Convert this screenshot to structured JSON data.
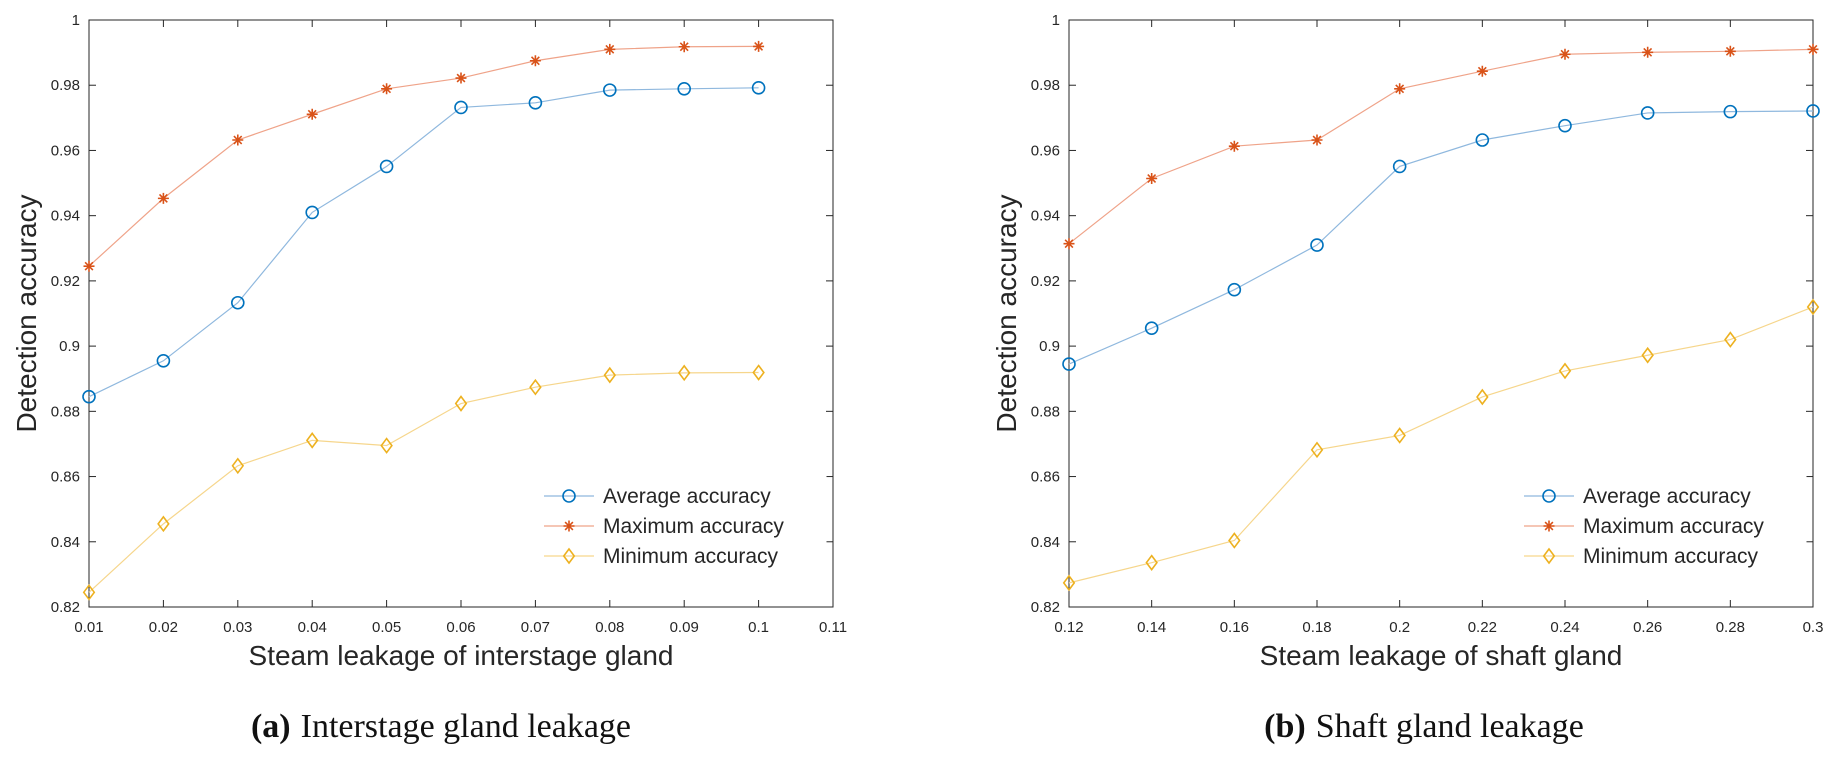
{
  "chart_data": [
    {
      "type": "line",
      "panel_letter": "(a)",
      "caption": "Interstage gland leakage",
      "xlabel": "Steam leakage of interstage gland",
      "ylabel": "Detection accuracy",
      "xlim": [
        0.01,
        0.11
      ],
      "ylim": [
        0.82,
        1.0
      ],
      "x_ticks": [
        0.01,
        0.02,
        0.03,
        0.04,
        0.05,
        0.06,
        0.07,
        0.08,
        0.09,
        0.1,
        0.11
      ],
      "x_tick_labels": [
        "0.01",
        "0.02",
        "0.03",
        "0.04",
        "0.05",
        "0.06",
        "0.07",
        "0.08",
        "0.09",
        "0.1",
        "0.11"
      ],
      "y_ticks": [
        0.82,
        0.84,
        0.86,
        0.88,
        0.9,
        0.92,
        0.94,
        0.96,
        0.98,
        1.0
      ],
      "y_tick_labels": [
        "0.82",
        "0.84",
        "0.86",
        "0.88",
        "0.9",
        "0.92",
        "0.94",
        "0.96",
        "0.98",
        "1"
      ],
      "legend_position": "bottom-right",
      "x": [
        0.01,
        0.02,
        0.03,
        0.04,
        0.05,
        0.06,
        0.07,
        0.08,
        0.09,
        0.1
      ],
      "series": [
        {
          "name": "Average accuracy",
          "marker": "circle",
          "color": "#0072BD",
          "line_color": "#8FB8DE",
          "values": [
            0.8845,
            0.8955,
            0.9133,
            0.941,
            0.9551,
            0.9732,
            0.9746,
            0.9785,
            0.9789,
            0.9792
          ]
        },
        {
          "name": "Maximum accuracy",
          "marker": "asterisk",
          "color": "#D95319",
          "line_color": "#EFA389",
          "values": [
            0.9245,
            0.9453,
            0.9632,
            0.9711,
            0.9789,
            0.9822,
            0.9875,
            0.991,
            0.9918,
            0.9919
          ]
        },
        {
          "name": "Minimum accuracy",
          "marker": "diamond",
          "color": "#EDB120",
          "line_color": "#F6D68C",
          "values": [
            0.8245,
            0.8455,
            0.8633,
            0.8711,
            0.8695,
            0.8824,
            0.8874,
            0.8911,
            0.8918,
            0.8919
          ]
        }
      ]
    },
    {
      "type": "line",
      "panel_letter": "(b)",
      "caption": "Shaft gland leakage",
      "xlabel": "Steam leakage of shaft gland",
      "ylabel": "Detection accuracy",
      "xlim": [
        0.12,
        0.3
      ],
      "ylim": [
        0.82,
        1.0
      ],
      "x_ticks": [
        0.12,
        0.14,
        0.16,
        0.18,
        0.2,
        0.22,
        0.24,
        0.26,
        0.28,
        0.3
      ],
      "x_tick_labels": [
        "0.12",
        "0.14",
        "0.16",
        "0.18",
        "0.2",
        "0.22",
        "0.24",
        "0.26",
        "0.28",
        "0.3"
      ],
      "y_ticks": [
        0.82,
        0.84,
        0.86,
        0.88,
        0.9,
        0.92,
        0.94,
        0.96,
        0.98,
        1.0
      ],
      "y_tick_labels": [
        "0.82",
        "0.84",
        "0.86",
        "0.88",
        "0.9",
        "0.92",
        "0.94",
        "0.96",
        "0.98",
        "1"
      ],
      "legend_position": "bottom-right",
      "x": [
        0.12,
        0.14,
        0.16,
        0.18,
        0.2,
        0.22,
        0.24,
        0.26,
        0.28,
        0.3
      ],
      "series": [
        {
          "name": "Average accuracy",
          "marker": "circle",
          "color": "#0072BD",
          "line_color": "#8FB8DE",
          "values": [
            0.8945,
            0.9055,
            0.9173,
            0.931,
            0.9551,
            0.9632,
            0.9676,
            0.9715,
            0.9719,
            0.9721
          ]
        },
        {
          "name": "Maximum accuracy",
          "marker": "asterisk",
          "color": "#D95319",
          "line_color": "#EFA389",
          "values": [
            0.9314,
            0.9514,
            0.9613,
            0.9632,
            0.9789,
            0.9843,
            0.9895,
            0.9901,
            0.9904,
            0.991
          ]
        },
        {
          "name": "Minimum accuracy",
          "marker": "diamond",
          "color": "#EDB120",
          "line_color": "#F6D68C",
          "values": [
            0.8274,
            0.8336,
            0.8404,
            0.8682,
            0.8726,
            0.8844,
            0.8924,
            0.8972,
            0.902,
            0.912
          ]
        }
      ]
    }
  ]
}
